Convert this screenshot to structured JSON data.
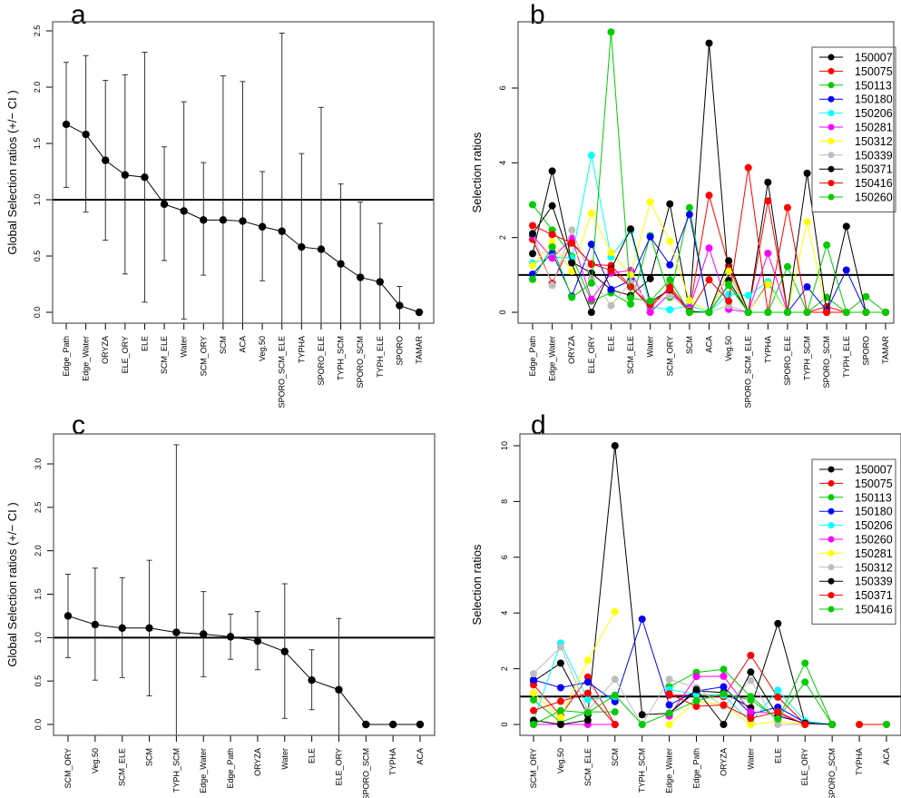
{
  "figure": {
    "panels": [
      "a",
      "b",
      "c",
      "d"
    ]
  },
  "chart_data": [
    {
      "id": "a",
      "type": "scatter",
      "title": "a",
      "xlabel": "",
      "ylabel": "Global Selection ratios (+/− CI )",
      "ylim": [
        -0.1,
        2.6
      ],
      "yticks": [
        "0.0",
        "0.5",
        "1.0",
        "1.5",
        "2.0",
        "2.5"
      ],
      "ytick_values": [
        0,
        0.5,
        1,
        1.5,
        2,
        2.5
      ],
      "reference_line": 1.0,
      "categories": [
        "Edge_Path",
        "Edge_Water",
        "ORYZA",
        "ELE_ORY",
        "ELE",
        "SCM_ELE",
        "Water",
        "SCM_ORY",
        "SCM",
        "ACA",
        "Veg.50",
        "SPORO_SCM_ELE",
        "TYPHA",
        "SPORO_ELE",
        "TYPH_SCM",
        "SPORO_SCM",
        "TYPH_ELE",
        "SPORO",
        "TAMAR"
      ],
      "values": [
        1.67,
        1.58,
        1.35,
        1.22,
        1.2,
        0.96,
        0.9,
        0.82,
        0.82,
        0.81,
        0.76,
        0.72,
        0.58,
        0.56,
        0.43,
        0.31,
        0.27,
        0.06,
        0.0
      ],
      "ci_lower": [
        1.11,
        0.89,
        0.64,
        0.34,
        0.09,
        0.46,
        -0.06,
        0.33,
        -0.1,
        -0.1,
        0.28,
        -0.1,
        -0.1,
        -0.1,
        -0.1,
        -0.1,
        -0.1,
        -0.1,
        null
      ],
      "ci_upper": [
        2.22,
        2.28,
        2.06,
        2.11,
        2.31,
        1.47,
        1.87,
        1.33,
        2.1,
        2.05,
        1.25,
        2.48,
        1.41,
        1.82,
        1.14,
        0.98,
        0.79,
        0.23,
        null
      ]
    },
    {
      "id": "b",
      "type": "line",
      "title": "b",
      "xlabel": "",
      "ylabel": "Selection ratios",
      "ylim": [
        -0.25,
        7.9
      ],
      "yticks": [
        "0",
        "2",
        "4",
        "6"
      ],
      "ytick_values": [
        0,
        2,
        4,
        6
      ],
      "reference_line": 1.0,
      "legend_position": "top-right",
      "categories": [
        "Edge_Path",
        "Edge_Water",
        "ORYZA",
        "ELE_ORY",
        "ELE",
        "SCM_ELE",
        "Water",
        "SCM_ORY",
        "SCM",
        "ACA",
        "Veg.50",
        "SPORO_SCM_ELE",
        "TYPHA",
        "SPORO_ELE",
        "TYPH_SCM",
        "SPORO_SCM",
        "TYPH_ELE",
        "SPORO",
        "TAMAR"
      ],
      "series": [
        {
          "name": "150007",
          "color": "#000000",
          "values": [
            1.57,
            3.78,
            1.35,
            1.05,
            0.6,
            0.45,
            0.9,
            2.9,
            0.05,
            7.2,
            0.85,
            0.0,
            3.48,
            0.0,
            0.0,
            0.0,
            0.0,
            0.0,
            0.0
          ]
        },
        {
          "name": "150075",
          "color": "#ff0000",
          "values": [
            1.95,
            0.78,
            1.88,
            1.28,
            1.25,
            0.7,
            0.12,
            0.68,
            0.05,
            3.13,
            1.25,
            0.0,
            2.98,
            0.0,
            0.0,
            0.15,
            0.0,
            0.0,
            0.0
          ]
        },
        {
          "name": "150113",
          "color": "#00cc00",
          "values": [
            2.88,
            2.2,
            1.5,
            0.3,
            0.52,
            0.22,
            2.05,
            0.4,
            2.8,
            0.0,
            0.72,
            0.0,
            0.0,
            1.22,
            0.0,
            0.4,
            0.0,
            0.42,
            0.0
          ]
        },
        {
          "name": "150180",
          "color": "#0000ff",
          "values": [
            1.02,
            1.6,
            0.43,
            1.82,
            0.61,
            0.85,
            2.02,
            1.27,
            2.62,
            0.0,
            1.08,
            0.0,
            0.78,
            0.0,
            0.68,
            0.05,
            1.13,
            0.0,
            0.0
          ]
        },
        {
          "name": "150206",
          "color": "#00ffff",
          "values": [
            1.32,
            1.48,
            1.45,
            4.2,
            1.48,
            2.18,
            0.15,
            0.07,
            0.18,
            0.0,
            0.48,
            0.45,
            0.82,
            0.0,
            0.0,
            0.0,
            0.0,
            0.0,
            0.0
          ]
        },
        {
          "name": "150281",
          "color": "#ff00ff",
          "values": [
            2.05,
            1.45,
            1.98,
            0.35,
            1.05,
            1.12,
            0.0,
            0.5,
            0.12,
            1.72,
            0.08,
            0.0,
            1.58,
            0.0,
            0.0,
            0.0,
            0.0,
            0.0,
            0.0
          ]
        },
        {
          "name": "150312",
          "color": "#ffff00",
          "values": [
            1.25,
            1.88,
            1.1,
            2.65,
            1.6,
            1.0,
            2.95,
            1.9,
            0.32,
            0.0,
            1.1,
            0.0,
            0.75,
            0.0,
            2.42,
            0.0,
            0.0,
            0.0,
            0.0
          ]
        },
        {
          "name": "150339",
          "color": "#bebebe",
          "values": [
            2.12,
            0.72,
            2.2,
            0.9,
            0.18,
            0.8,
            0.25,
            0.45,
            0.05,
            0.0,
            0.18,
            0.0,
            0.0,
            0.0,
            0.0,
            0.0,
            0.0,
            0.0,
            0.0
          ]
        },
        {
          "name": "150371",
          "color": "#000000",
          "values": [
            2.1,
            2.85,
            1.32,
            0.0,
            1.15,
            2.23,
            0.28,
            0.6,
            0.02,
            0.0,
            1.38,
            0.0,
            0.0,
            0.0,
            3.72,
            0.0,
            2.3,
            0.0,
            0.0
          ]
        },
        {
          "name": "150416",
          "color": "#ff0000",
          "values": [
            2.32,
            2.08,
            1.85,
            1.3,
            1.12,
            0.68,
            0.2,
            0.62,
            0.0,
            0.87,
            0.3,
            3.87,
            0.0,
            2.8,
            0.0,
            0.0,
            0.0,
            0.0,
            0.0
          ]
        },
        {
          "name": "150260",
          "color": "#00cc00",
          "values": [
            0.88,
            1.75,
            0.4,
            0.78,
            7.5,
            0.38,
            0.3,
            0.87,
            0.0,
            0.0,
            0.75,
            0.0,
            0.0,
            0.0,
            0.0,
            1.8,
            0.0,
            0.0,
            0.0
          ]
        }
      ]
    },
    {
      "id": "c",
      "type": "scatter",
      "title": "c",
      "xlabel": "",
      "ylabel": "Global Selection ratios (+/− CI )",
      "ylim": [
        -0.13,
        3.35
      ],
      "yticks": [
        "0.0",
        "0.5",
        "1.0",
        "1.5",
        "2.0",
        "2.5",
        "3.0"
      ],
      "ytick_values": [
        0,
        0.5,
        1,
        1.5,
        2,
        2.5,
        3
      ],
      "reference_line": 1.0,
      "categories": [
        "SCM_ORY",
        "Veg.50",
        "SCM_ELE",
        "SCM",
        "TYPH_SCM",
        "Edge_Water",
        "Edge_Path",
        "ORYZA",
        "Water",
        "ELE",
        "ELE_ORY",
        "SPORO_SCM",
        "TYPHA",
        "ACA"
      ],
      "values": [
        1.25,
        1.15,
        1.11,
        1.11,
        1.06,
        1.04,
        1.01,
        0.96,
        0.84,
        0.51,
        0.4,
        0.0,
        0.0,
        0.0
      ],
      "ci_lower": [
        0.77,
        0.51,
        0.54,
        0.33,
        -0.13,
        0.55,
        0.75,
        0.63,
        0.07,
        0.17,
        -0.13,
        null,
        null,
        null
      ],
      "ci_upper": [
        1.73,
        1.8,
        1.69,
        1.89,
        3.22,
        1.53,
        1.27,
        1.3,
        1.62,
        0.86,
        1.22,
        null,
        null,
        null
      ]
    },
    {
      "id": "d",
      "type": "line",
      "title": "d",
      "xlabel": "",
      "ylabel": "Selection ratios",
      "ylim": [
        -0.4,
        10.6
      ],
      "yticks": [
        "0",
        "2",
        "4",
        "6",
        "8",
        "10"
      ],
      "ytick_values": [
        0,
        2,
        4,
        6,
        8,
        10
      ],
      "reference_line": 1.0,
      "legend_position": "top-right",
      "categories": [
        "SCM_ORY",
        "Veg.50",
        "SCM_ELE",
        "SCM",
        "TYPH_SCM",
        "Edge_Water",
        "Edge_Path",
        "ORYZA",
        "Water",
        "ELE",
        "ELE_ORY",
        "SPORO_SCM",
        "TYPHA",
        "ACA"
      ],
      "series": [
        {
          "name": "150007",
          "color": "#000000",
          "values": [
            1.55,
            2.2,
            0.35,
            10.0,
            0.35,
            0.4,
            1.2,
            1.15,
            0.6,
            3.62,
            0.05,
            0.0,
            null,
            null
          ]
        },
        {
          "name": "150075",
          "color": "#ff0000",
          "values": [
            1.42,
            0.32,
            1.7,
            0.0,
            null,
            1.05,
            1.05,
            1.0,
            2.48,
            0.98,
            0.02,
            0.0,
            null,
            null
          ]
        },
        {
          "name": "150113",
          "color": "#00cc00",
          "values": [
            0.88,
            0.08,
            0.45,
            0.45,
            null,
            1.35,
            1.87,
            1.98,
            1.0,
            0.18,
            2.2,
            0.0,
            null,
            null
          ]
        },
        {
          "name": "150180",
          "color": "#0000ff",
          "values": [
            1.6,
            1.32,
            1.52,
            0.82,
            3.78,
            0.7,
            1.2,
            1.35,
            0.38,
            0.62,
            0.07,
            0.0,
            null,
            null
          ]
        },
        {
          "name": "150206",
          "color": "#00ffff",
          "values": [
            0.12,
            2.92,
            0.9,
            1.0,
            null,
            1.25,
            1.08,
            1.05,
            0.08,
            1.23,
            0.12,
            0.0,
            null,
            null
          ]
        },
        {
          "name": "150260",
          "color": "#ff00ff",
          "values": [
            0.0,
            0.0,
            0.0,
            0.0,
            null,
            0.3,
            1.72,
            1.73,
            0.45,
            0.4,
            0.0,
            0.0,
            null,
            null
          ]
        },
        {
          "name": "150281",
          "color": "#ffff00",
          "values": [
            1.13,
            0.25,
            2.3,
            4.05,
            null,
            0.0,
            0.85,
            0.7,
            0.0,
            0.1,
            0.0,
            0.0,
            null,
            null
          ]
        },
        {
          "name": "150312",
          "color": "#bebebe",
          "values": [
            1.82,
            2.78,
            0.5,
            1.62,
            0.0,
            1.62,
            1.32,
            0.65,
            1.58,
            0.0,
            0.0,
            0.0,
            null,
            null
          ]
        },
        {
          "name": "150339",
          "color": "#000000",
          "values": [
            0.15,
            0.0,
            0.15,
            null,
            null,
            0.4,
            1.25,
            0.0,
            1.88,
            0.3,
            0.05,
            0.0,
            null,
            null
          ]
        },
        {
          "name": "150371",
          "color": "#ff0000",
          "values": [
            0.5,
            0.83,
            1.12,
            0.0,
            null,
            1.1,
            0.65,
            0.7,
            0.22,
            0.45,
            0.0,
            null,
            0.0,
            0.0
          ]
        },
        {
          "name": "150416",
          "color": "#00cc00",
          "values": [
            0.0,
            0.5,
            0.42,
            1.05,
            0.0,
            0.4,
            0.85,
            1.1,
            0.88,
            0.2,
            1.52,
            0.0,
            null,
            0.0
          ]
        }
      ]
    }
  ]
}
